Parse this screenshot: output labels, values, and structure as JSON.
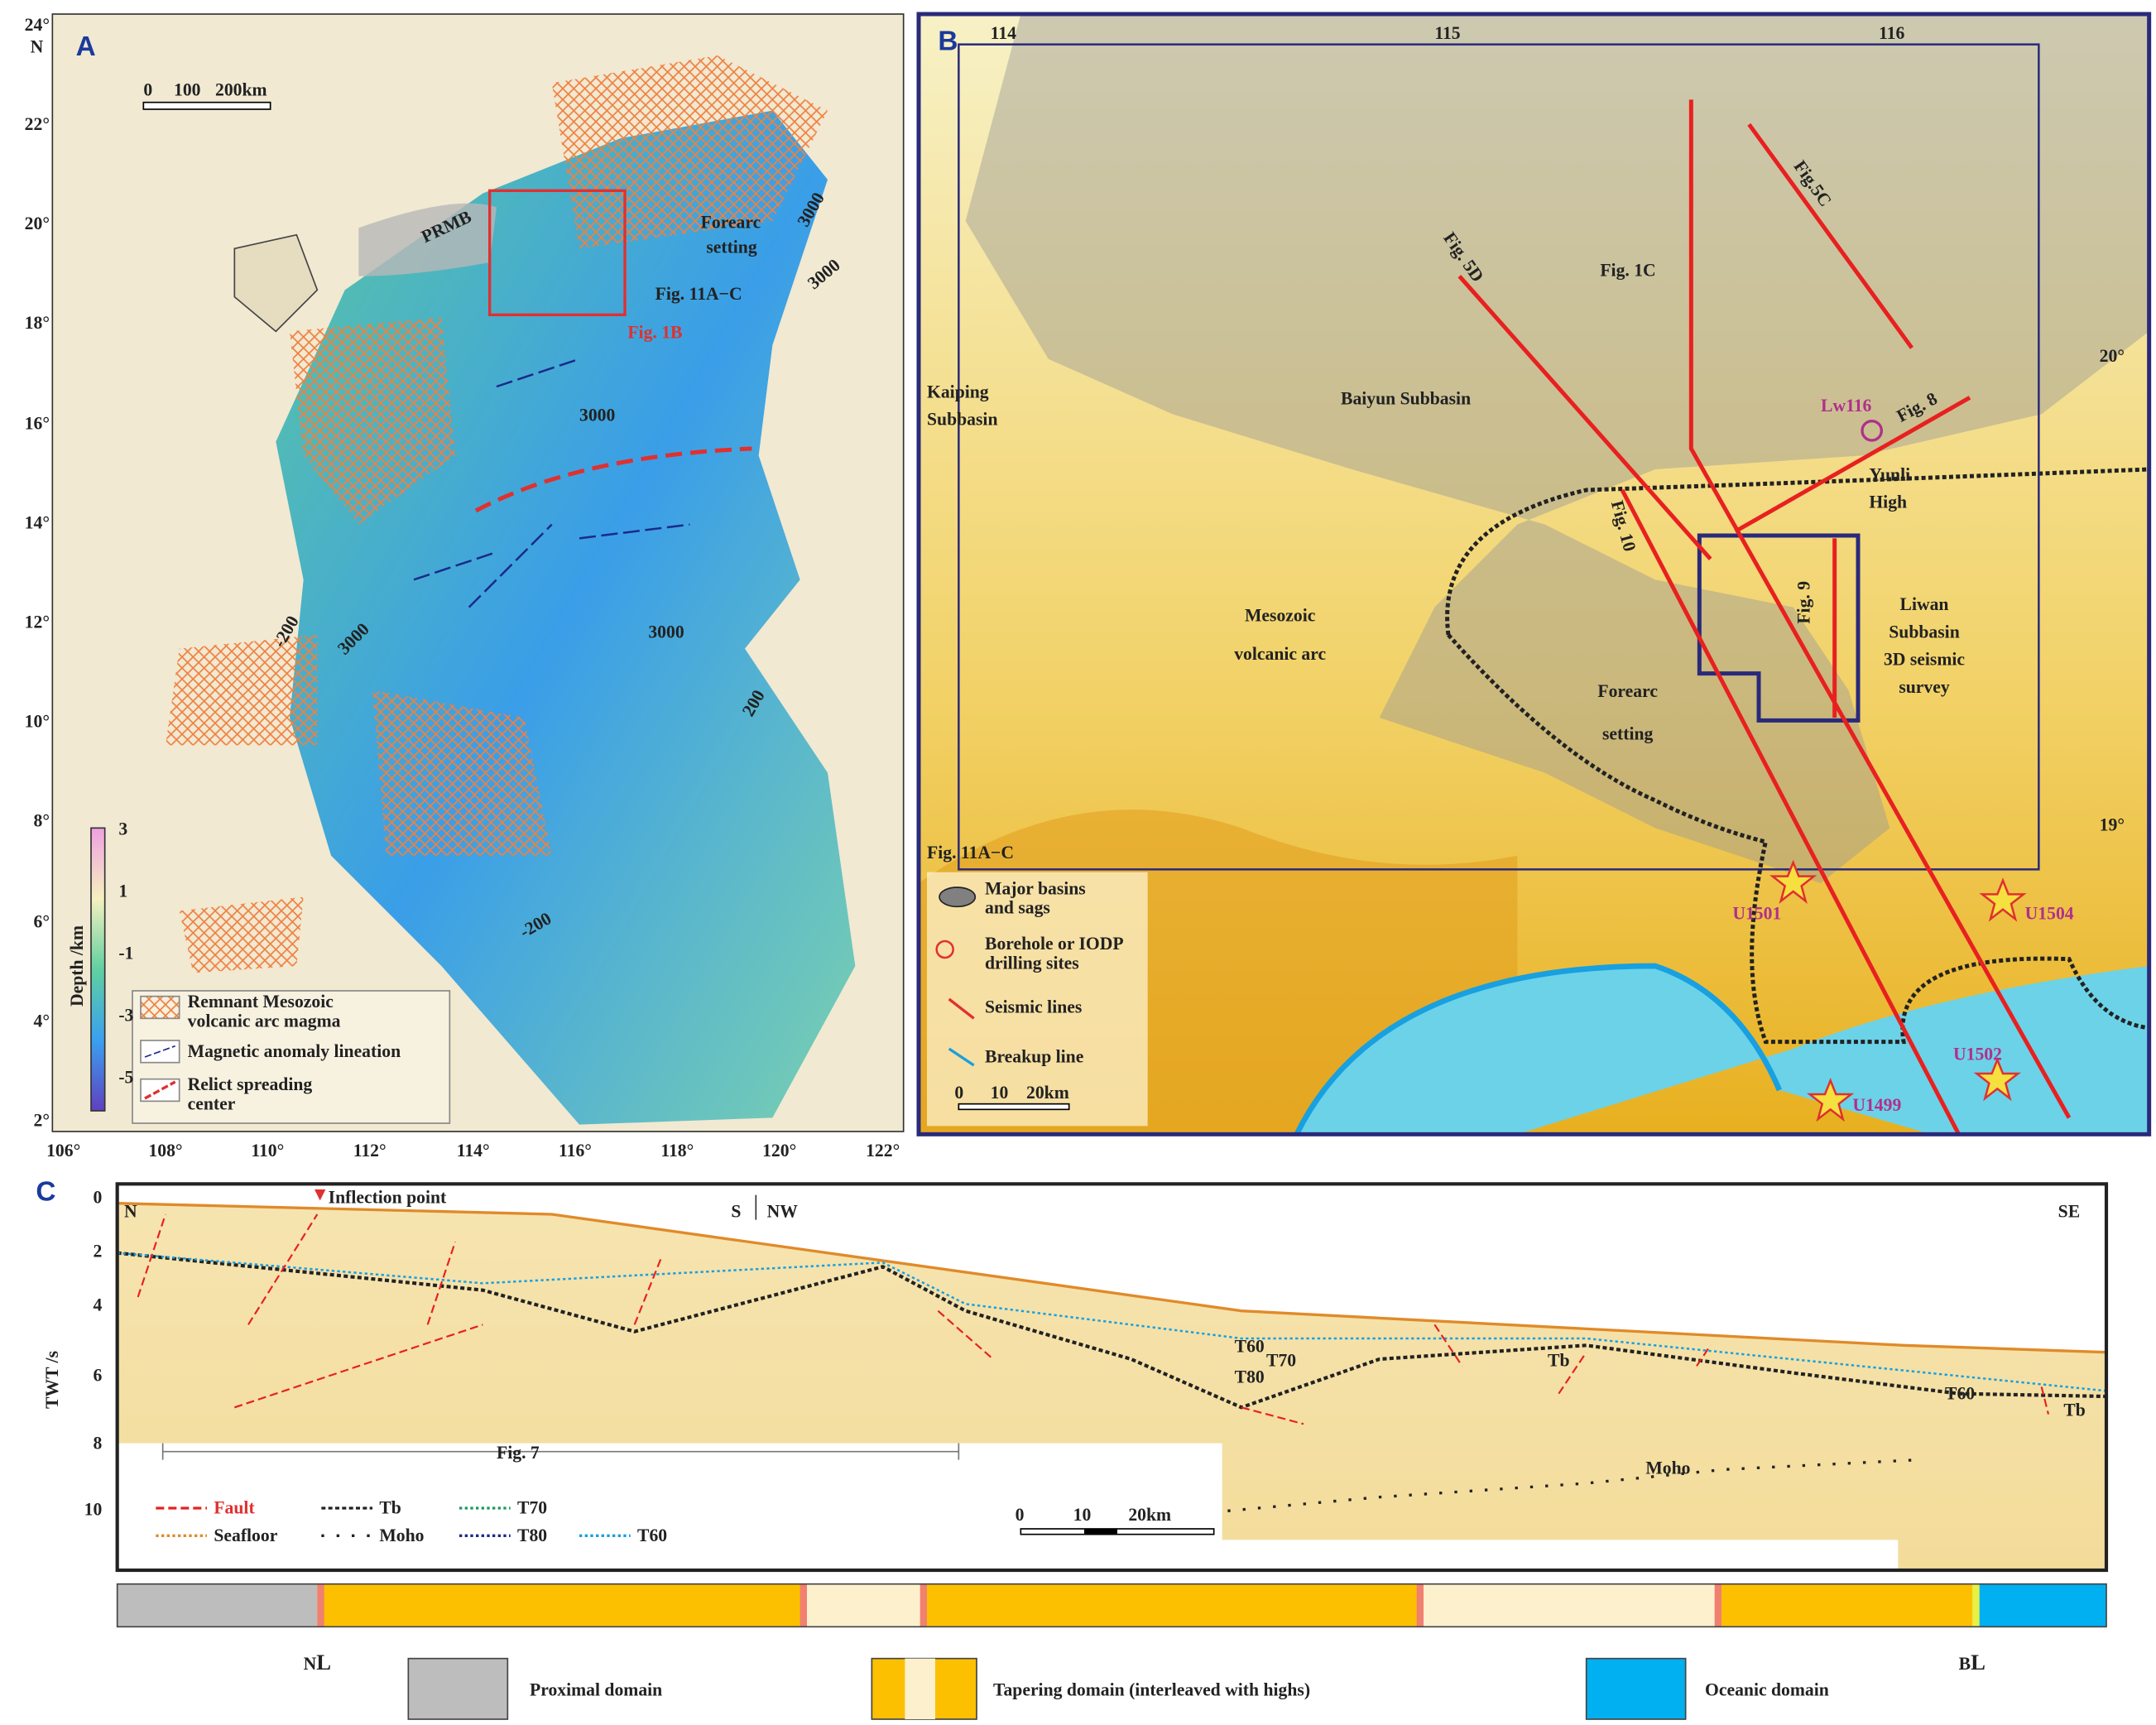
{
  "panel_a": {
    "label": "A",
    "north": "N",
    "lat_labels": [
      "24°",
      "22°",
      "20°",
      "18°",
      "16°",
      "14°",
      "12°",
      "10°",
      "8°",
      "6°",
      "4°",
      "2°"
    ],
    "lon_labels": [
      "106°",
      "108°",
      "110°",
      "112°",
      "114°",
      "116°",
      "118°",
      "120°",
      "122°"
    ],
    "scale": [
      "0",
      "100",
      "200km"
    ],
    "annotations": {
      "prmb": "PRMB",
      "forearc_1": "Forearc",
      "forearc_2": "setting",
      "fig11": "Fig. 11A−C",
      "fig1b": "Fig. 1B"
    },
    "contours": [
      "3000",
      "3000",
      "3000",
      "3000",
      "3000",
      "-200",
      "-200",
      "200"
    ],
    "colorbar": {
      "title": "Depth /km",
      "ticks": [
        "3",
        "1",
        "-1",
        "-3",
        "-5"
      ]
    },
    "legend": [
      [
        "Remnant Mesozoic",
        "volcanic arc magma"
      ],
      [
        "Magnetic anomaly lineation"
      ],
      [
        "Relict spreading",
        "center"
      ]
    ]
  },
  "panel_b": {
    "label": "B",
    "lon_labels": [
      "114",
      "115",
      "116"
    ],
    "lat_labels": [
      "20°",
      "19°"
    ],
    "annotations": {
      "fig5c": "Fig.5C",
      "fig5d": "Fig. 5D",
      "fig1c": "Fig. 1C",
      "kaiping": [
        "Kaiping",
        "Subbasin"
      ],
      "baiyun": "Baiyun Subbasin",
      "lw116": "Lw116",
      "fig8": "Fig. 8",
      "yunli": [
        "Yunli",
        "High"
      ],
      "fig10": "Fig. 10",
      "fig9": "Fig. 9",
      "liwan": [
        "Liwan",
        "Subbasin",
        "3D seismic",
        "survey"
      ],
      "mesozoic": [
        "Mesozoic",
        "volcanic arc"
      ],
      "forearc": [
        "Forearc",
        "setting"
      ],
      "fig11": "Fig. 11A−C"
    },
    "sites": [
      "U1501",
      "U1504",
      "U1502",
      "U1499"
    ],
    "legend": [
      [
        "Major basins",
        "and sags"
      ],
      [
        "Borehole or IODP",
        "drilling sites"
      ],
      [
        "Seismic lines"
      ],
      [
        "Breakup line"
      ]
    ],
    "scale": [
      "0",
      "10",
      "20km"
    ]
  },
  "panel_c": {
    "label": "C",
    "inflection": "Inflection point",
    "directions": [
      "N",
      "S",
      "NW",
      "SE"
    ],
    "y_axis": "TWT /s",
    "y_ticks": [
      "0",
      "2",
      "4",
      "6",
      "8",
      "10"
    ],
    "horizons": {
      "t60": "T60",
      "t70": "T70",
      "t80": "T80",
      "tb1": "Tb",
      "t60b": "T60",
      "tb2": "Tb",
      "moho": "Moho"
    },
    "fig7": "Fig. 7",
    "legend": [
      "Fault",
      "Tb",
      "T70",
      "Seafloor",
      "Moho",
      "T80",
      "T60"
    ],
    "scale": [
      "0",
      "10",
      "20km"
    ]
  },
  "domains": {
    "nl": {
      "main": "N",
      "sub": "L"
    },
    "bl": {
      "main": "B",
      "sub": "L"
    },
    "legend": [
      "Proximal domain",
      "Tapering domain (interleaved with highs)",
      "Oceanic domain"
    ]
  }
}
